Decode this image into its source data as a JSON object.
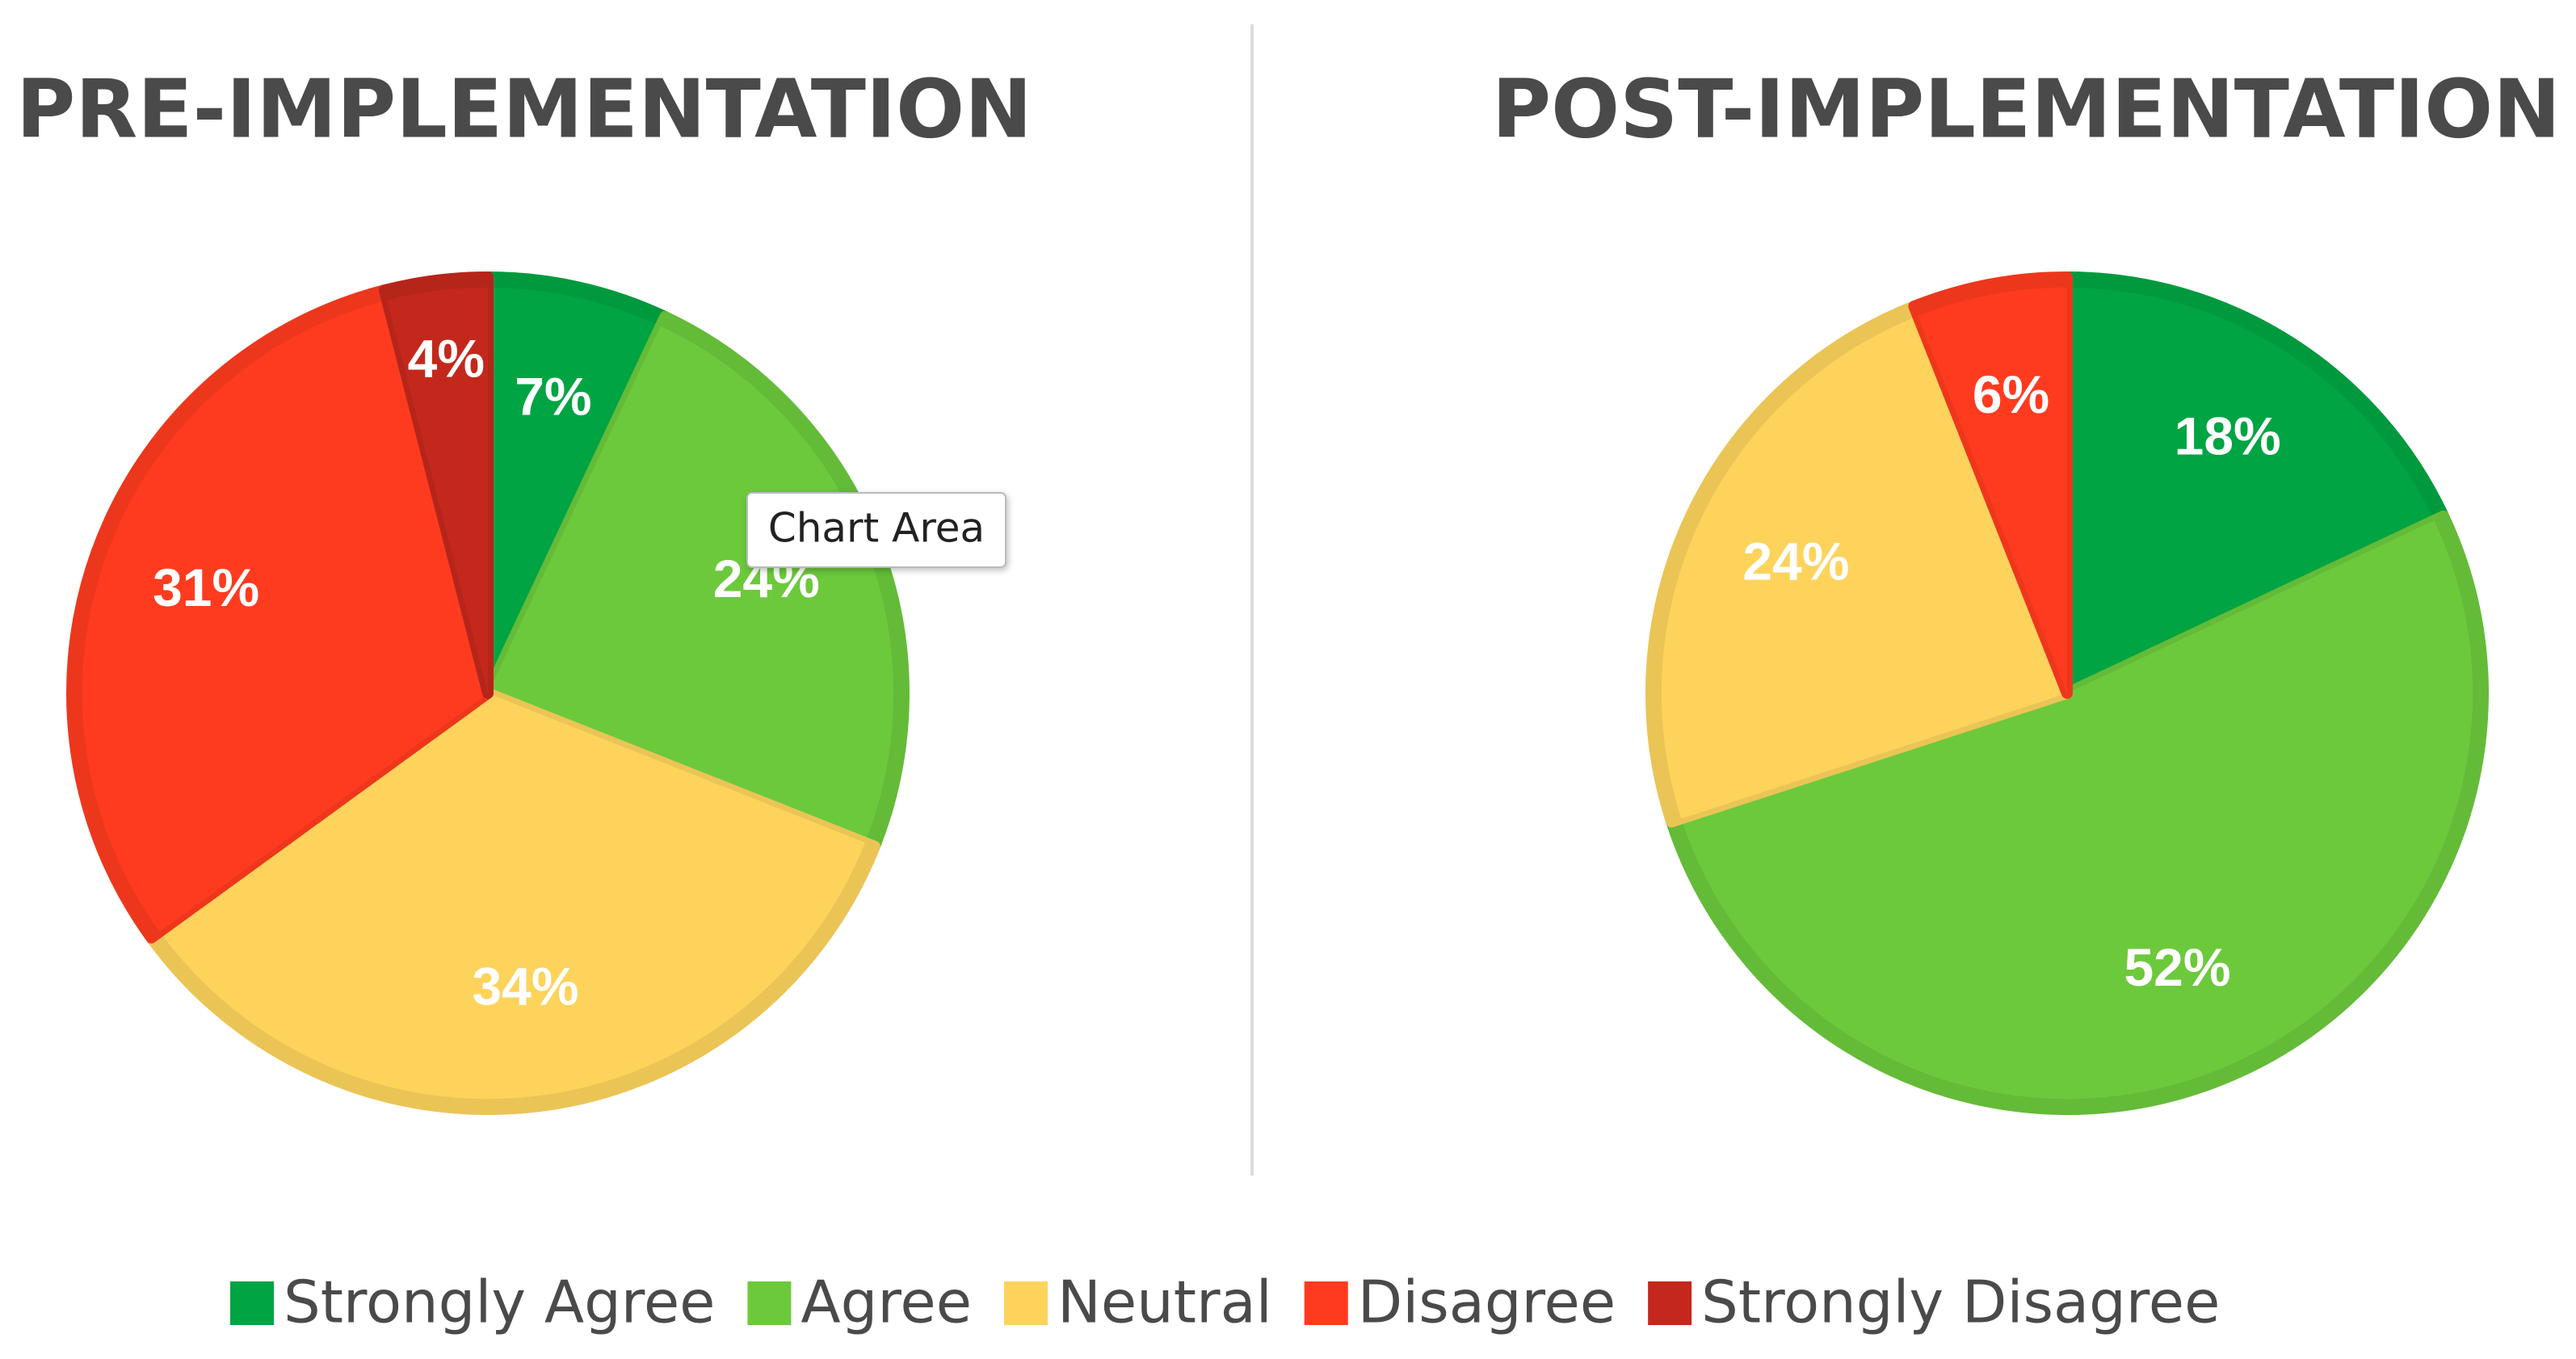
{
  "chart_data": [
    {
      "type": "pie",
      "title": "PRE-IMPLEMENTATION",
      "categories": [
        "Strongly Agree",
        "Agree",
        "Neutral",
        "Disagree",
        "Strongly Disagree"
      ],
      "values": [
        7,
        24,
        34,
        31,
        4
      ],
      "value_labels": [
        "7%",
        "24%",
        "34%",
        "31%",
        "4%"
      ],
      "colors": [
        "#00a443",
        "#6cc93c",
        "#fdd35c",
        "#ff3b1f",
        "#c4281c"
      ],
      "annotation": "Chart Area"
    },
    {
      "type": "pie",
      "title": "POST-IMPLEMENTATION",
      "categories": [
        "Strongly Agree",
        "Agree",
        "Neutral",
        "Disagree"
      ],
      "values": [
        18,
        52,
        24,
        6
      ],
      "value_labels": [
        "18%",
        "52%",
        "24%",
        "6%"
      ],
      "colors": [
        "#00a443",
        "#6cc93c",
        "#fdd35c",
        "#ff3b1f"
      ]
    }
  ]
}
